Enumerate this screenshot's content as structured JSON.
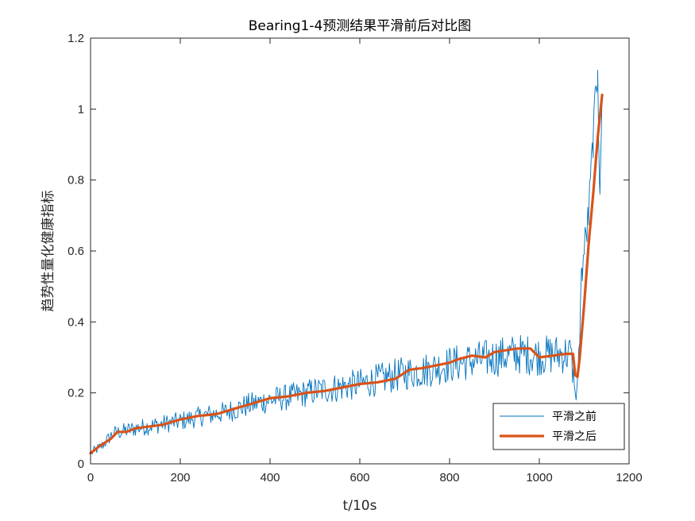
{
  "chart_data": {
    "type": "line",
    "title": "Bearing1-4预测结果平滑前后对比图",
    "xlabel": "t/10s",
    "ylabel": "趋势性量化健康指标",
    "xlim": [
      0,
      1200
    ],
    "ylim": [
      0,
      1.2
    ],
    "xticks": [
      0,
      200,
      400,
      600,
      800,
      1000,
      1200
    ],
    "yticks": [
      0,
      0.2,
      0.4,
      0.6,
      0.8,
      1,
      1.2
    ],
    "xtick_labels": [
      "0",
      "200",
      "400",
      "600",
      "800",
      "1000",
      "1200"
    ],
    "ytick_labels": [
      "0",
      "0.2",
      "0.4",
      "0.6",
      "0.8",
      "1",
      "1.2"
    ],
    "grid": false,
    "legend_position": "bottom-right",
    "series": [
      {
        "name": "平滑之前",
        "color": "#0072BD",
        "x": [
          0,
          25,
          50,
          100,
          150,
          200,
          250,
          300,
          350,
          400,
          450,
          500,
          550,
          600,
          650,
          700,
          750,
          800,
          850,
          900,
          950,
          1000,
          1050,
          1070,
          1078,
          1082,
          1086,
          1095,
          1110,
          1120,
          1130,
          1135,
          1140
        ],
        "values": [
          0.03,
          0.05,
          0.085,
          0.1,
          0.11,
          0.12,
          0.135,
          0.145,
          0.165,
          0.18,
          0.19,
          0.205,
          0.215,
          0.225,
          0.24,
          0.255,
          0.265,
          0.28,
          0.29,
          0.3,
          0.31,
          0.305,
          0.31,
          0.31,
          0.22,
          0.18,
          0.26,
          0.55,
          0.7,
          0.92,
          1.11,
          0.76,
          1.04
        ]
      },
      {
        "name": "平滑之后",
        "color": "#D95319",
        "x": [
          0,
          20,
          45,
          60,
          80,
          100,
          130,
          160,
          200,
          240,
          280,
          320,
          360,
          400,
          440,
          480,
          520,
          560,
          600,
          640,
          680,
          710,
          740,
          780,
          800,
          820,
          850,
          880,
          900,
          950,
          980,
          1000,
          1030,
          1060,
          1075,
          1080,
          1085,
          1090,
          1100,
          1110,
          1120,
          1130,
          1140
        ],
        "values": [
          0.03,
          0.05,
          0.07,
          0.09,
          0.09,
          0.1,
          0.105,
          0.11,
          0.125,
          0.135,
          0.14,
          0.155,
          0.17,
          0.185,
          0.19,
          0.2,
          0.205,
          0.215,
          0.225,
          0.23,
          0.24,
          0.265,
          0.27,
          0.28,
          0.285,
          0.295,
          0.305,
          0.3,
          0.315,
          0.325,
          0.325,
          0.3,
          0.305,
          0.31,
          0.31,
          0.25,
          0.245,
          0.3,
          0.45,
          0.62,
          0.76,
          0.92,
          1.04
        ]
      }
    ]
  }
}
